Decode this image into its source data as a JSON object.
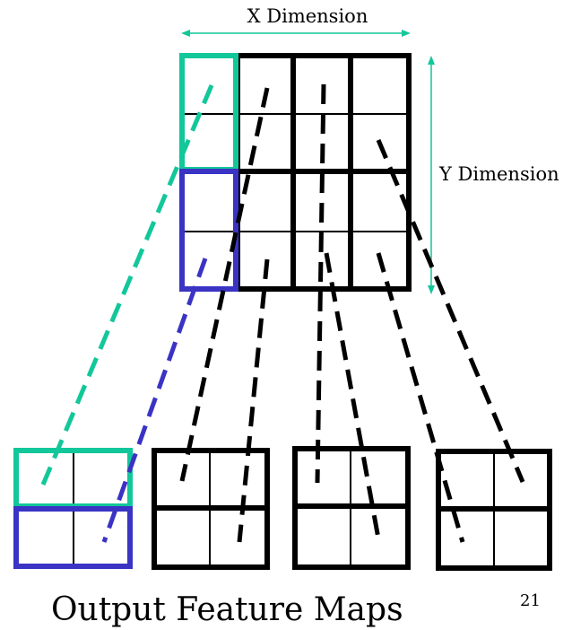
{
  "labels": {
    "x_dimension": "X Dimension",
    "y_dimension": "Y Dimension",
    "output_title": "Output Feature Maps",
    "page_number": "21"
  },
  "colors": {
    "green": "#12c79a",
    "blue": "#3a33c4",
    "black": "#000000",
    "arrow": "#12c79a"
  }
}
